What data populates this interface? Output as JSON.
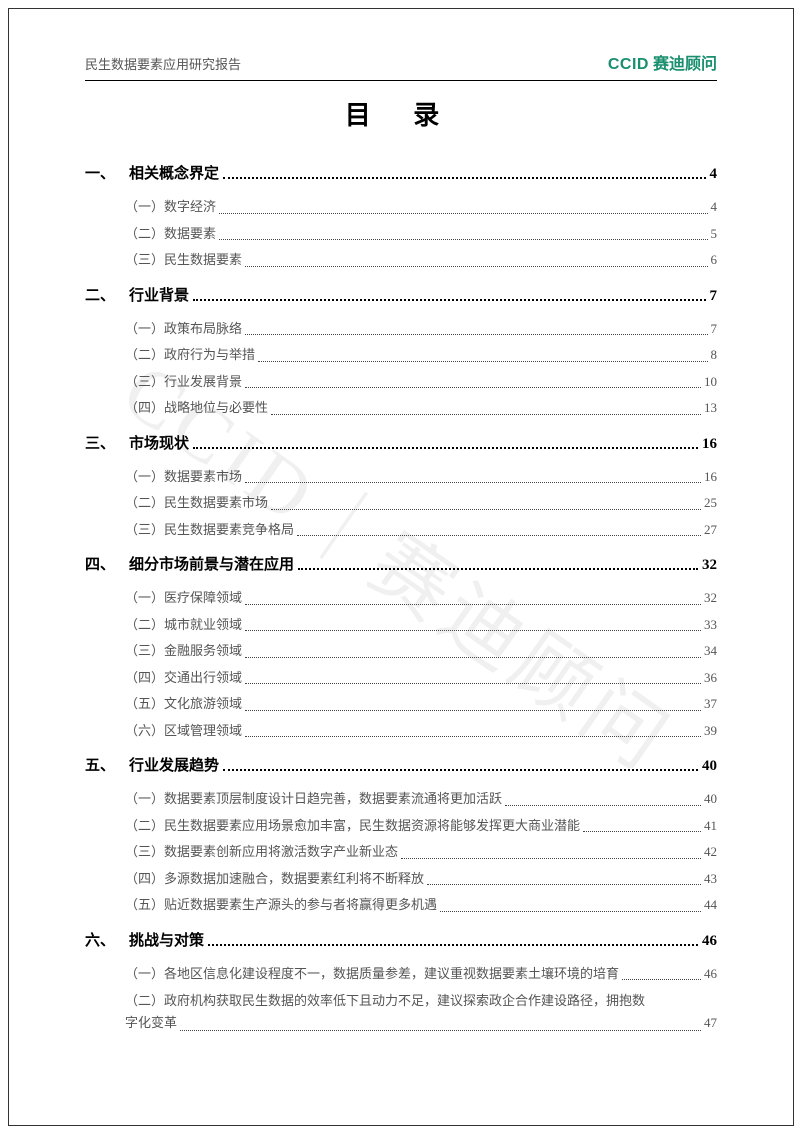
{
  "header": {
    "left": "民生数据要素应用研究报告",
    "logo_en": "CCID",
    "logo_cn": "赛迪顾问"
  },
  "title": "目 录",
  "watermark": "CCID｜赛迪顾问",
  "colors": {
    "brand": "#1a8f6f",
    "text_main": "#000000",
    "text_sub": "#555555",
    "border": "#333333",
    "watermark": "rgba(0,0,0,0.06)"
  },
  "sections": [
    {
      "num": "一、",
      "title": "相关概念界定",
      "page": "4",
      "items": [
        {
          "label": "（一）数字经济",
          "page": "4"
        },
        {
          "label": "（二）数据要素",
          "page": "5"
        },
        {
          "label": "（三）民生数据要素",
          "page": "6"
        }
      ]
    },
    {
      "num": "二、",
      "title": "行业背景",
      "page": "7",
      "items": [
        {
          "label": "（一）政策布局脉络",
          "page": "7"
        },
        {
          "label": "（二）政府行为与举措",
          "page": "8"
        },
        {
          "label": "（三）行业发展背景",
          "page": "10"
        },
        {
          "label": "（四）战略地位与必要性",
          "page": "13"
        }
      ]
    },
    {
      "num": "三、",
      "title": "市场现状",
      "page": "16",
      "items": [
        {
          "label": "（一）数据要素市场",
          "page": "16"
        },
        {
          "label": "（二）民生数据要素市场",
          "page": "25"
        },
        {
          "label": "（三）民生数据要素竞争格局",
          "page": "27"
        }
      ]
    },
    {
      "num": "四、",
      "title": "细分市场前景与潜在应用",
      "page": "32",
      "items": [
        {
          "label": "（一）医疗保障领域",
          "page": "32"
        },
        {
          "label": "（二）城市就业领域",
          "page": "33"
        },
        {
          "label": "（三）金融服务领域",
          "page": "34"
        },
        {
          "label": "（四）交通出行领域",
          "page": "36"
        },
        {
          "label": "（五）文化旅游领域",
          "page": "37"
        },
        {
          "label": "（六）区域管理领域",
          "page": "39"
        }
      ]
    },
    {
      "num": "五、",
      "title": "行业发展趋势",
      "page": "40",
      "items": [
        {
          "label": "（一）数据要素顶层制度设计日趋完善，数据要素流通将更加活跃",
          "page": "40"
        },
        {
          "label": "（二）民生数据要素应用场景愈加丰富，民生数据资源将能够发挥更大商业潜能",
          "page": "41"
        },
        {
          "label": "（三）数据要素创新应用将激活数字产业新业态",
          "page": "42"
        },
        {
          "label": "（四）多源数据加速融合，数据要素红利将不断释放",
          "page": "43"
        },
        {
          "label": "（五）贴近数据要素生产源头的参与者将赢得更多机遇",
          "page": "44"
        }
      ]
    },
    {
      "num": "六、",
      "title": "挑战与对策",
      "page": "46",
      "items": [
        {
          "label": "（一）各地区信息化建设程度不一，数据质量参差，建议重视数据要素土壤环境的培育",
          "page": "46"
        },
        {
          "label_line1": "（二）政府机构获取民生数据的效率低下且动力不足，建议探索政企合作建设路径，拥抱数",
          "label_line2": "字化变革",
          "page": "47",
          "multiline": true
        }
      ]
    }
  ]
}
